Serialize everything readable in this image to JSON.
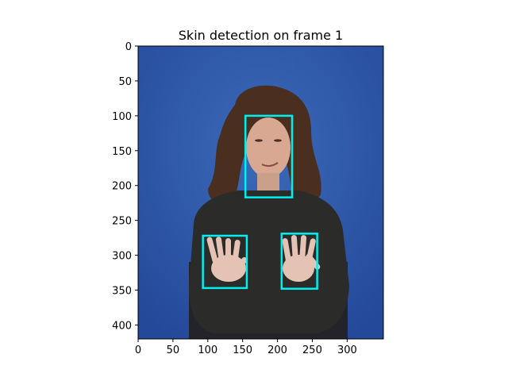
{
  "figure": {
    "title": "Skin detection on frame 1",
    "background_color": "#ffffff",
    "box_color": "#00f0f0",
    "scene": {
      "backdrop_color": "#2f5aa8",
      "shirt_color": "#2b2b29",
      "hair_color": "#4a2e1f",
      "skin_color": "#d9a893"
    }
  },
  "image_extent": {
    "width": 352,
    "height": 420
  },
  "x_axis": {
    "ticks": [
      0,
      50,
      100,
      150,
      200,
      250,
      300
    ],
    "labels": [
      "0",
      "50",
      "100",
      "150",
      "200",
      "250",
      "300"
    ]
  },
  "y_axis": {
    "ticks": [
      0,
      50,
      100,
      150,
      200,
      250,
      300,
      350,
      400
    ],
    "labels": [
      "0",
      "50",
      "100",
      "150",
      "200",
      "250",
      "300",
      "350",
      "400"
    ]
  },
  "detections": [
    {
      "name": "face",
      "x0": 154,
      "y0": 100,
      "x1": 221,
      "y1": 217
    },
    {
      "name": "left-hand",
      "x0": 93,
      "y0": 272,
      "x1": 156,
      "y1": 347
    },
    {
      "name": "right-hand",
      "x0": 206,
      "y0": 269,
      "x1": 257,
      "y1": 348
    }
  ]
}
